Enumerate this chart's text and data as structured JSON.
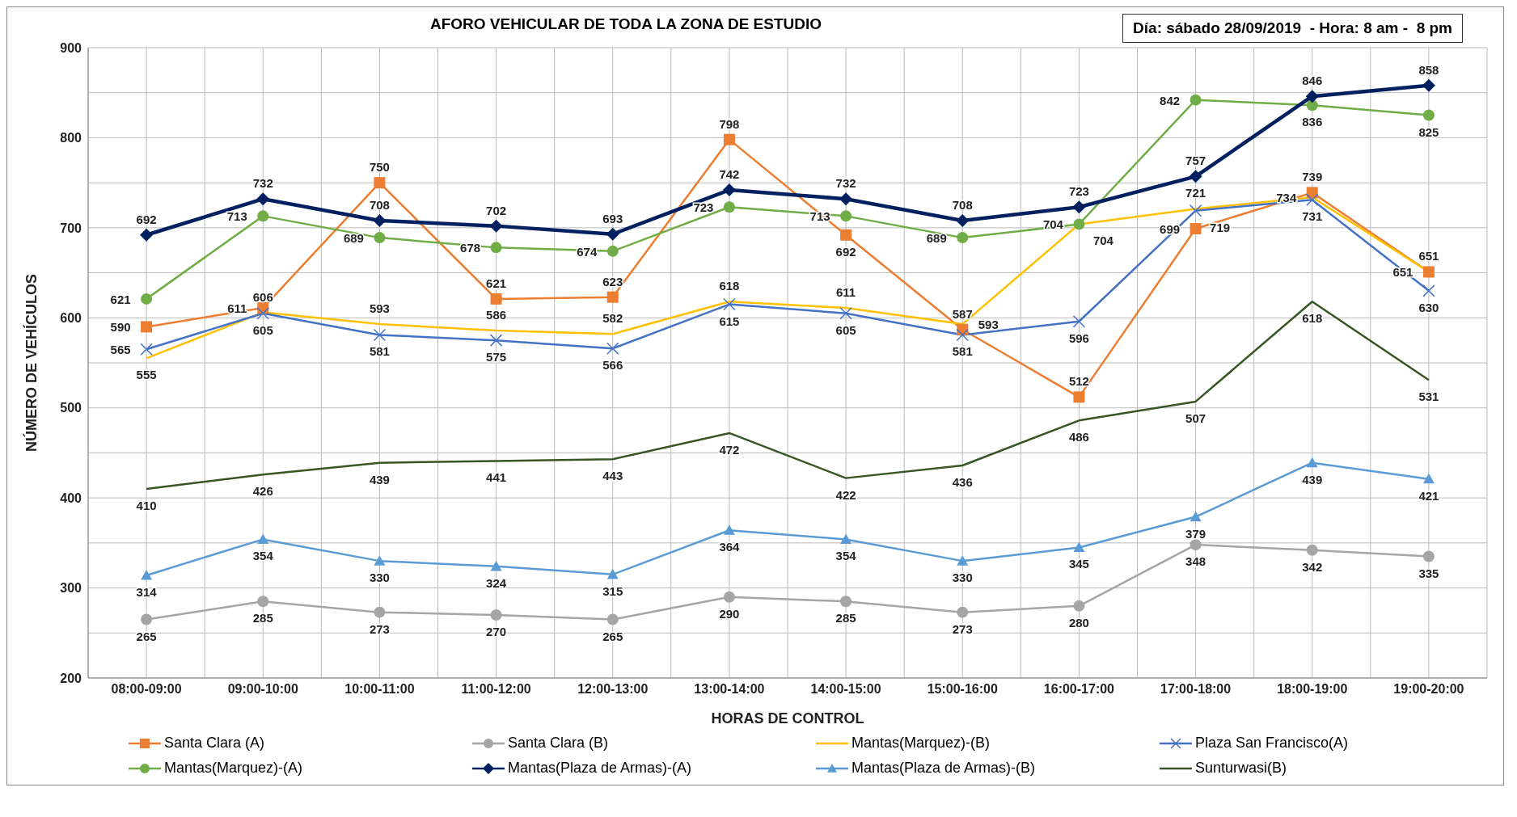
{
  "chart_data": {
    "type": "line",
    "title": "AFORO VEHICULAR DE TODA LA ZONA DE ESTUDIO",
    "xlabel": "HORAS DE CONTROL",
    "ylabel": "NÚMERO DE VEHÍCULOS",
    "annotations": [
      "Día: sábado 28/09/2019  - Hora: 8 am -  8 pm"
    ],
    "categories": [
      "08:00-09:00",
      "09:00-10:00",
      "10:00-11:00",
      "11:00-12:00",
      "12:00-13:00",
      "13:00-14:00",
      "14:00-15:00",
      "15:00-16:00",
      "16:00-17:00",
      "17:00-18:00",
      "18:00-19:00",
      "19:00-20:00"
    ],
    "series": [
      {
        "name": "Santa Clara (A)",
        "color": "#ed7d31",
        "marker": "square",
        "values": [
          590,
          611,
          750,
          621,
          623,
          798,
          692,
          587,
          512,
          699,
          739,
          651
        ]
      },
      {
        "name": "Santa Clara (B)",
        "color": "#a5a5a5",
        "marker": "circle",
        "values": [
          265,
          285,
          273,
          270,
          265,
          290,
          285,
          273,
          280,
          348,
          342,
          335
        ]
      },
      {
        "name": "Mantas(Marquez)-(B)",
        "color": "#ffc000",
        "marker": "none",
        "values": [
          555,
          606,
          593,
          586,
          582,
          618,
          611,
          593,
          704,
          721,
          734,
          651
        ]
      },
      {
        "name": "Plaza San Francisco(A)",
        "color": "#4472c4",
        "marker": "cross",
        "values": [
          565,
          605,
          581,
          575,
          566,
          615,
          605,
          581,
          596,
          719,
          731,
          630
        ]
      },
      {
        "name": "Mantas(Marquez)-(A)",
        "color": "#70ad47",
        "marker": "circle",
        "values": [
          621,
          713,
          689,
          678,
          674,
          723,
          713,
          689,
          704,
          842,
          836,
          825
        ]
      },
      {
        "name": "Mantas(Plaza de Armas)-(A)",
        "color": "#002060",
        "marker": "diamond",
        "values": [
          692,
          732,
          708,
          702,
          693,
          742,
          732,
          708,
          723,
          757,
          846,
          858
        ]
      },
      {
        "name": "Mantas(Plaza de Armas)-(B)",
        "color": "#5b9bd5",
        "marker": "triangle",
        "values": [
          314,
          354,
          330,
          324,
          315,
          364,
          354,
          330,
          345,
          379,
          439,
          421
        ]
      },
      {
        "name": "Sunturwasi(B)",
        "color": "#375623",
        "marker": "none",
        "values": [
          410,
          426,
          439,
          441,
          443,
          472,
          422,
          436,
          486,
          507,
          618,
          531
        ]
      }
    ],
    "ylim": [
      200,
      900
    ],
    "yticks": [
      200,
      300,
      400,
      500,
      600,
      700,
      800,
      900
    ],
    "grid": true,
    "legend": "bottom",
    "data_labels": true,
    "line_style": "solid"
  }
}
